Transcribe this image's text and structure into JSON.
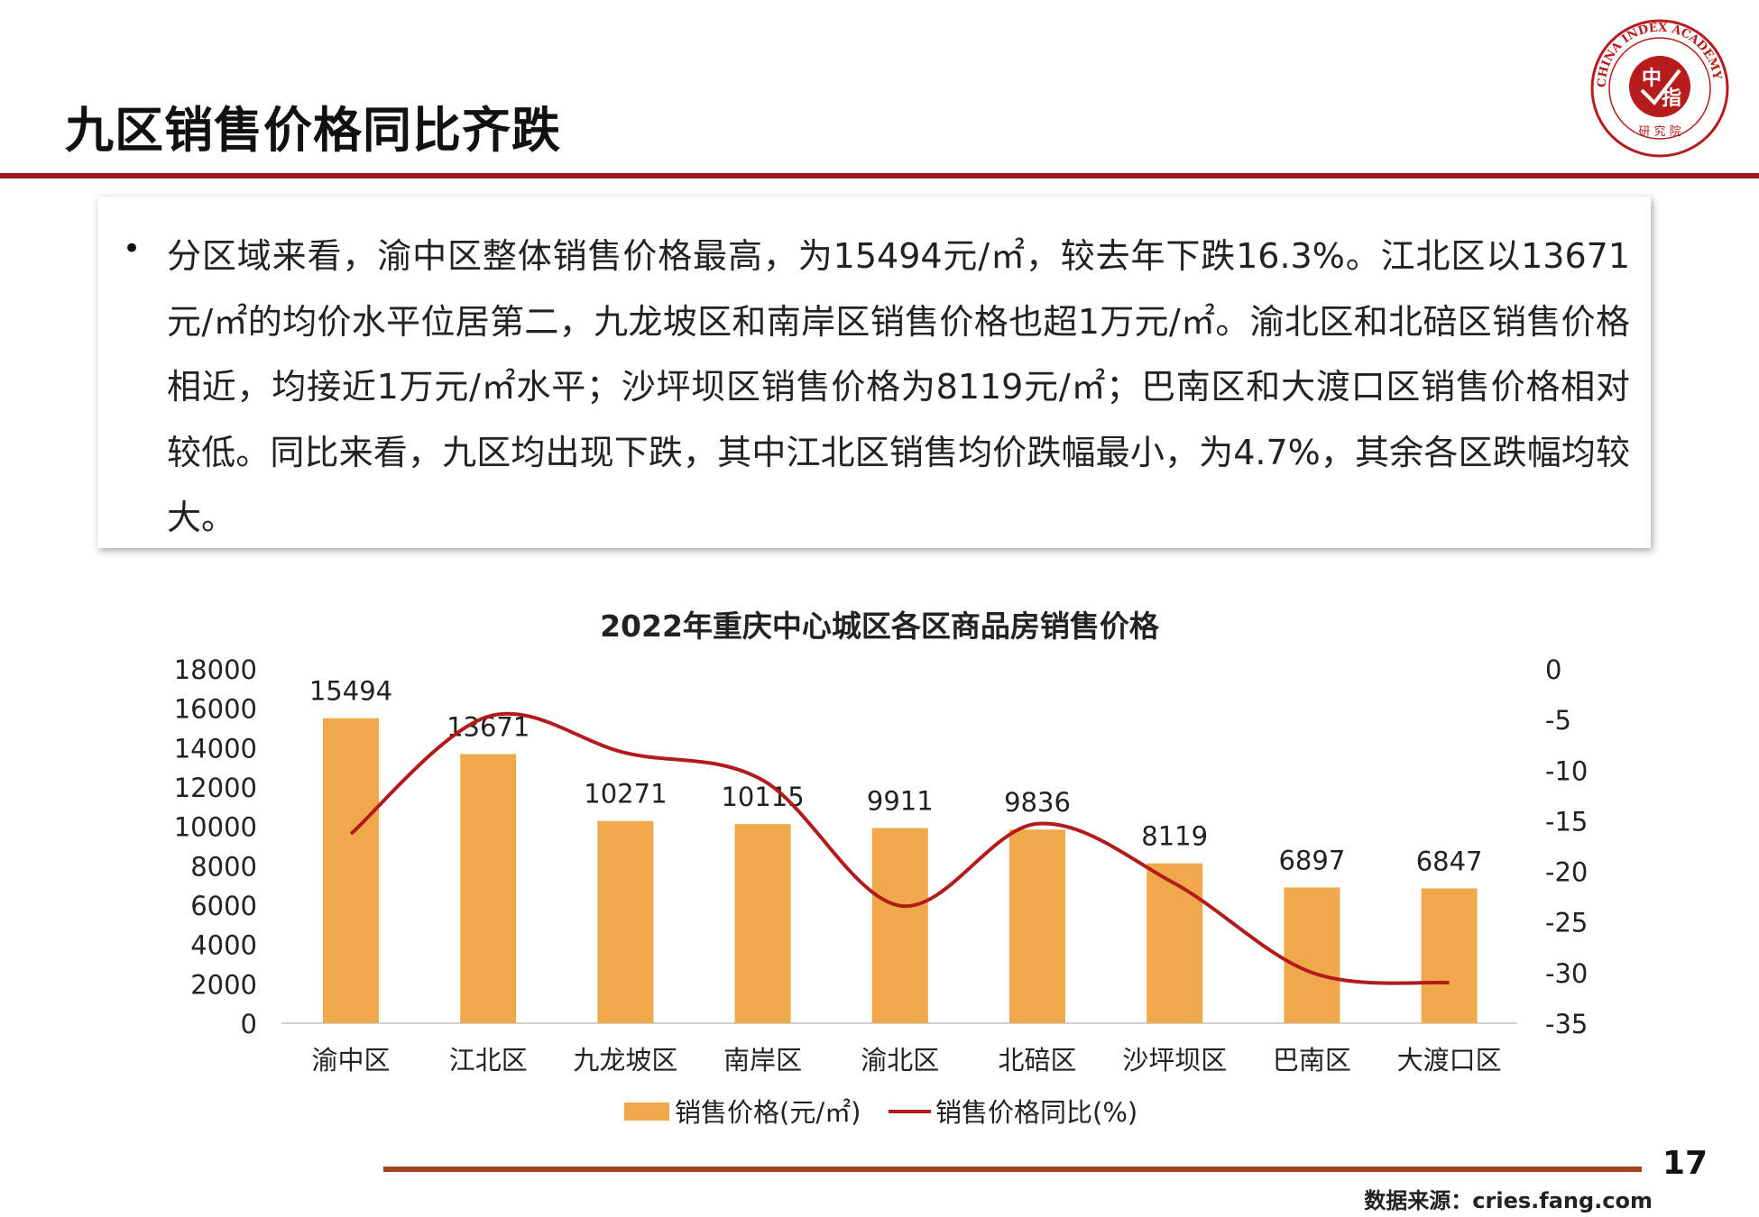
{
  "header": {
    "title": "九区销售价格同比齐跌"
  },
  "logo": {
    "text_outer": "CHINA INDEX ACADEMY",
    "text_center_1": "中",
    "text_center_2": "指",
    "text_bottom": "研 究 院",
    "color": "#b71c1c"
  },
  "summary": {
    "bullet": "•",
    "text": "分区域来看，渝中区整体销售价格最高，为15494元/㎡，较去年下跌16.3%。江北区以13671元/㎡的均价水平位居第二，九龙坡区和南岸区销售价格也超1万元/㎡。渝北区和北碚区销售价格相近，均接近1万元/㎡水平；沙坪坝区销售价格为8119元/㎡；巴南区和大渡口区销售价格相对较低。同比来看，九区均出现下跌，其中江北区销售均价跌幅最小，为4.7%，其余各区跌幅均较大。"
  },
  "chart_data": {
    "type": "bar+line",
    "title": "2022年重庆中心城区各区商品房销售价格",
    "categories": [
      "渝中区",
      "江北区",
      "九龙坡区",
      "南岸区",
      "渝北区",
      "北碚区",
      "沙坪坝区",
      "巴南区",
      "大渡口区"
    ],
    "series": [
      {
        "name": "销售价格(元/㎡)",
        "type": "bar",
        "axis": "left",
        "color": "#f0a94a",
        "values": [
          15494,
          13671,
          10271,
          10115,
          9911,
          9836,
          8119,
          6897,
          6847
        ]
      },
      {
        "name": "销售价格同比(%)",
        "type": "line",
        "axis": "right",
        "color": "#b31b1b",
        "smooth": true,
        "values": [
          -16.3,
          -4.7,
          -8.3,
          -11.0,
          -23.4,
          -15.3,
          -21.2,
          -30.0,
          -31.0
        ]
      }
    ],
    "left_axis": {
      "ylim": [
        0,
        18000
      ],
      "ticks": [
        "18000",
        "16000",
        "14000",
        "12000",
        "10000",
        "8000",
        "6000",
        "4000",
        "2000",
        "0"
      ]
    },
    "right_axis": {
      "ylim": [
        -35,
        0
      ],
      "ticks": [
        "0",
        "-5",
        "-10",
        "-15",
        "-20",
        "-25",
        "-30",
        "-35"
      ]
    },
    "data_labels": [
      "15494",
      "13671",
      "10271",
      "10115",
      "9911",
      "9836",
      "8119",
      "6897",
      "6847"
    ],
    "grid": false,
    "legend": "bottom"
  },
  "footer": {
    "page_number": "17",
    "source": "数据来源：cries.fang.com"
  }
}
